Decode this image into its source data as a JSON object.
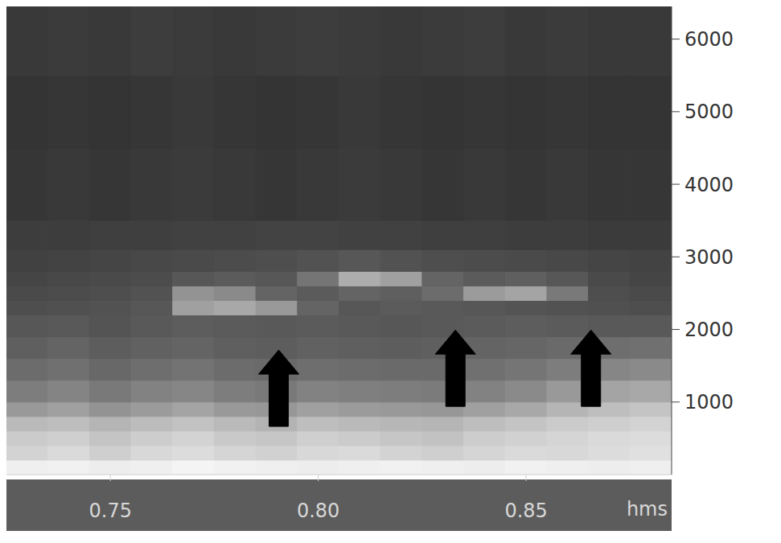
{
  "chart_data": {
    "type": "heatmap",
    "xlim": [
      0.725,
      0.885
    ],
    "xticks": [
      0.75,
      {
        "value": 0.8,
        "label": "0.80"
      },
      0.85
    ],
    "x_label": "hms",
    "ylim": [
      0,
      6450
    ],
    "yticks": [
      1000,
      2000,
      3000,
      4000,
      5000,
      6000
    ],
    "x_bins": [
      0.725,
      0.735,
      0.745,
      0.755,
      0.765,
      0.775,
      0.785,
      0.795,
      0.805,
      0.815,
      0.825,
      0.835,
      0.845,
      0.855,
      0.865,
      0.875,
      0.885
    ],
    "y_bins": [
      0,
      200,
      400,
      600,
      800,
      1000,
      1300,
      1600,
      1900,
      2200,
      2400,
      2600,
      2800,
      3100,
      3500,
      4500,
      5500,
      6450
    ],
    "cells": [
      [
        95,
        96,
        94,
        95,
        97,
        96,
        95,
        94,
        95,
        96,
        95,
        94,
        96,
        95,
        94,
        95
      ],
      [
        82,
        85,
        80,
        84,
        86,
        83,
        81,
        84,
        85,
        82,
        80,
        83,
        85,
        84,
        86,
        88
      ],
      [
        78,
        80,
        75,
        79,
        82,
        77,
        76,
        80,
        78,
        76,
        74,
        79,
        81,
        83,
        85,
        86
      ],
      [
        70,
        72,
        68,
        71,
        74,
        70,
        67,
        72,
        70,
        69,
        68,
        72,
        75,
        78,
        80,
        82
      ],
      [
        55,
        58,
        52,
        56,
        60,
        55,
        54,
        58,
        56,
        55,
        54,
        58,
        62,
        68,
        72,
        75
      ],
      [
        42,
        45,
        40,
        44,
        46,
        42,
        40,
        44,
        43,
        42,
        41,
        44,
        48,
        55,
        60,
        62
      ],
      [
        34,
        36,
        32,
        35,
        37,
        34,
        33,
        35,
        34,
        33,
        33,
        36,
        38,
        42,
        46,
        48
      ],
      [
        28,
        30,
        27,
        29,
        30,
        28,
        27,
        29,
        28,
        27,
        28,
        30,
        31,
        33,
        35,
        36
      ],
      [
        24,
        25,
        23,
        25,
        27,
        26,
        25,
        26,
        25,
        24,
        25,
        26,
        27,
        26,
        25,
        25
      ],
      [
        20,
        21,
        22,
        24,
        58,
        62,
        55,
        30,
        24,
        26,
        25,
        24,
        23,
        22,
        21,
        20
      ],
      [
        18,
        19,
        20,
        22,
        52,
        48,
        30,
        26,
        30,
        28,
        34,
        56,
        60,
        40,
        20,
        18
      ],
      [
        16,
        17,
        18,
        19,
        24,
        26,
        24,
        38,
        64,
        58,
        30,
        26,
        28,
        24,
        18,
        16
      ],
      [
        14,
        15,
        16,
        17,
        18,
        19,
        20,
        22,
        24,
        22,
        20,
        19,
        18,
        17,
        16,
        15
      ],
      [
        12,
        12,
        13,
        13,
        14,
        14,
        15,
        15,
        14,
        14,
        13,
        13,
        12,
        12,
        11,
        11
      ],
      [
        9,
        10,
        9,
        10,
        11,
        10,
        9,
        10,
        11,
        10,
        9,
        10,
        9,
        10,
        9,
        9
      ],
      [
        8,
        9,
        8,
        9,
        10,
        9,
        8,
        9,
        10,
        9,
        8,
        9,
        8,
        9,
        8,
        8
      ],
      [
        10,
        11,
        10,
        12,
        11,
        10,
        11,
        12,
        11,
        10,
        11,
        12,
        10,
        11,
        10,
        10
      ]
    ],
    "arrows": {
      "x": [
        0.7905,
        0.833,
        0.8656
      ],
      "y": [
        1717,
        1993,
        1993
      ],
      "color": "#000000"
    }
  }
}
